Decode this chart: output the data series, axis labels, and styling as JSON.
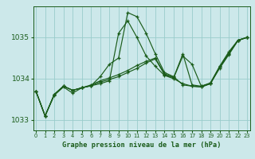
{
  "title": "Graphe pression niveau de la mer (hPa)",
  "background_color": "#cce8ea",
  "grid_color": "#99cccc",
  "line_color": "#1a5c1a",
  "x_ticks": [
    0,
    1,
    2,
    3,
    4,
    5,
    6,
    7,
    8,
    9,
    10,
    11,
    12,
    13,
    14,
    15,
    16,
    17,
    18,
    19,
    20,
    21,
    22,
    23
  ],
  "ylim": [
    1032.75,
    1035.75
  ],
  "yticks": [
    1033,
    1034,
    1035
  ],
  "series": [
    [
      1033.7,
      1033.1,
      1033.6,
      1033.8,
      1033.65,
      1033.78,
      1033.83,
      1034.05,
      1034.35,
      1034.5,
      1035.6,
      1035.5,
      1035.1,
      1034.6,
      1034.15,
      1034.05,
      1033.85,
      1033.82,
      1033.8,
      1033.88,
      1034.25,
      1034.58,
      1034.92,
      1035.0
    ],
    [
      1033.7,
      1033.1,
      1033.62,
      1033.82,
      1033.72,
      1033.78,
      1033.83,
      1033.88,
      1033.95,
      1035.1,
      1035.4,
      1035.0,
      1034.55,
      1034.3,
      1034.08,
      1034.0,
      1033.88,
      1033.82,
      1033.8,
      1033.88,
      1034.28,
      1034.6,
      1034.93,
      1035.0
    ],
    [
      1033.7,
      1033.1,
      1033.62,
      1033.82,
      1033.72,
      1033.78,
      1033.83,
      1033.92,
      1033.98,
      1034.05,
      1034.15,
      1034.25,
      1034.38,
      1034.48,
      1034.1,
      1034.02,
      1034.55,
      1034.35,
      1033.82,
      1033.88,
      1034.28,
      1034.62,
      1034.93,
      1035.0
    ],
    [
      1033.7,
      1033.1,
      1033.62,
      1033.82,
      1033.72,
      1033.78,
      1033.85,
      1033.95,
      1034.02,
      1034.1,
      1034.2,
      1034.32,
      1034.42,
      1034.5,
      1034.12,
      1034.03,
      1034.6,
      1033.85,
      1033.82,
      1033.9,
      1034.3,
      1034.65,
      1034.93,
      1035.0
    ]
  ]
}
